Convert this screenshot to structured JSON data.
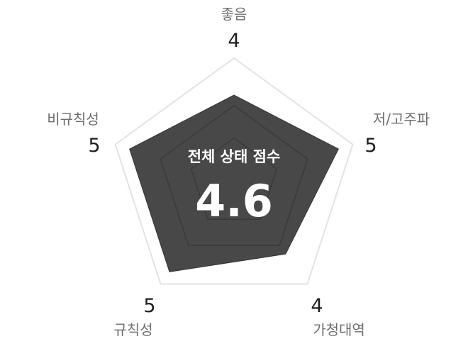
{
  "chart_data": {
    "type": "radar",
    "title": "전체 상태 점수",
    "overall_score": "4.6",
    "axes": [
      "좋음",
      "저/고주파",
      "가청대역",
      "규칙성",
      "비규칙성"
    ],
    "values": [
      4,
      5,
      4,
      5,
      5
    ],
    "max": 5,
    "rings": 3,
    "colors": {
      "fill": "#484848",
      "stroke": "#333333",
      "grid": "#e3e3e3",
      "label": "#6e6e6e",
      "value": "#1e1e1e"
    }
  }
}
